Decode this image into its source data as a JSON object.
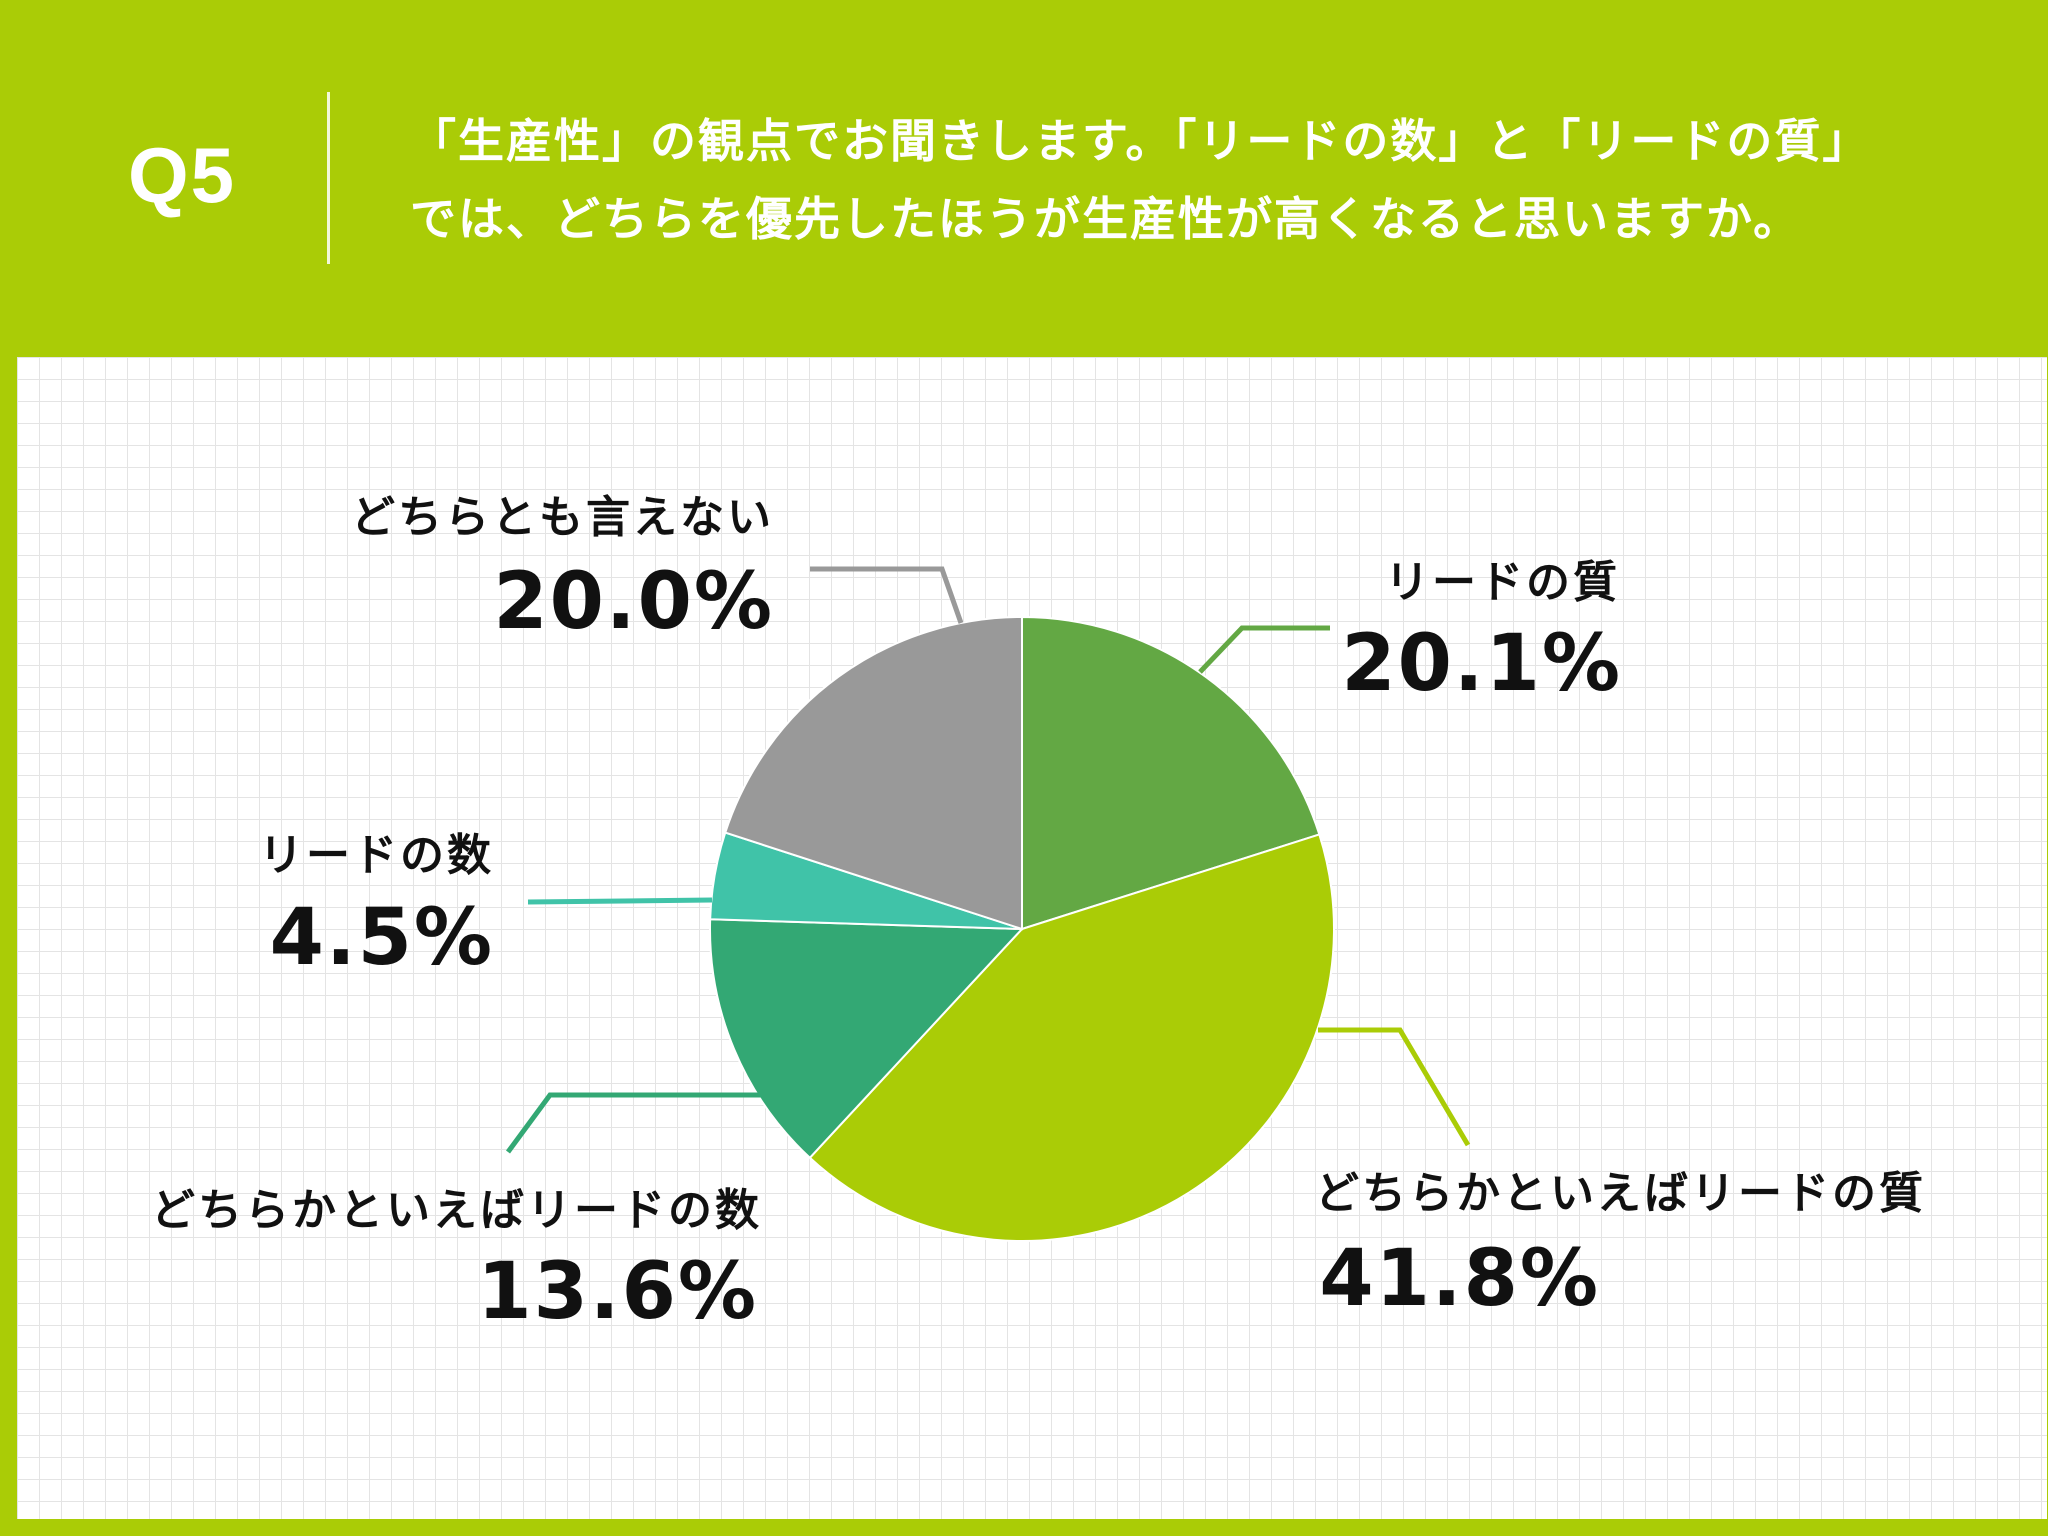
{
  "header": {
    "question_number": "Q5",
    "question_line1": "「生産性」の観点でお聞きします。「リードの数」と「リードの質」",
    "question_line2": "では、どちらを優先したほうが生産性が高くなると思いますか。"
  },
  "colors": {
    "background": "#aacc06",
    "panel": "#ffffff"
  },
  "chart_data": {
    "type": "pie",
    "start_angle_deg": 0,
    "direction": "clockwise",
    "slices": [
      {
        "label": "リードの質",
        "value": 20.1,
        "value_label": "20.1%",
        "color": "#63a844"
      },
      {
        "label": "どちらかといえばリードの質",
        "value": 41.8,
        "value_label": "41.8%",
        "color": "#aacc06"
      },
      {
        "label": "どちらかといえばリードの数",
        "value": 13.6,
        "value_label": "13.6%",
        "color": "#33a874"
      },
      {
        "label": "リードの数",
        "value": 4.5,
        "value_label": "4.5%",
        "color": "#40c3a8"
      },
      {
        "label": "どちらとも言えない",
        "value": 20.0,
        "value_label": "20.0%",
        "color": "#999999"
      }
    ],
    "leader_color_for_gray": "#999999"
  }
}
